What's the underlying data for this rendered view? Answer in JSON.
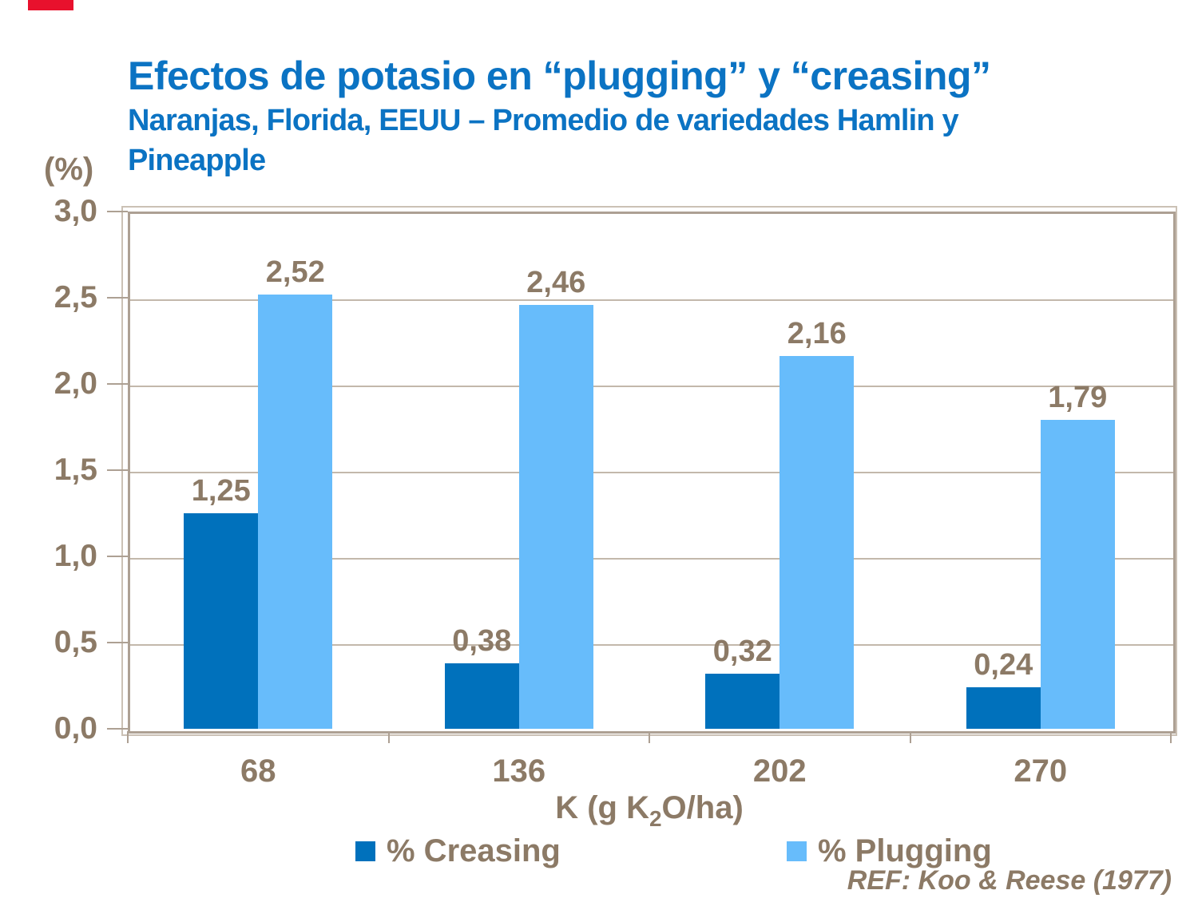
{
  "slide": {
    "title": "Efectos de potasio en “plugging” y “creasing”",
    "subtitle_line1": "Naranjas, Florida, EEUU – Promedio de variedades Hamlin y",
    "subtitle_line2": "Pineapple",
    "reference": "REF: Koo & Reese (1977)",
    "accent_color": "#e8112d",
    "title_color": "#0b73c3"
  },
  "chart_data": {
    "type": "bar",
    "title": "Efectos de potasio en “plugging” y “creasing”",
    "subtitle": "Naranjas, Florida, EEUU – Promedio de variedades Hamlin y Pineapple",
    "unit_label": "(%)",
    "xlabel": "K (g K2O/ha)",
    "xlabel_parts": {
      "pre": "K (g K",
      "sub": "2",
      "post": "O/ha)"
    },
    "categories": [
      "68",
      "136",
      "202",
      "270"
    ],
    "series": [
      {
        "name": "% Creasing",
        "color": "#0071bc",
        "values": [
          1.25,
          0.38,
          0.32,
          0.24
        ],
        "labels": [
          "1,25",
          "0,38",
          "0,32",
          "0,24"
        ]
      },
      {
        "name": "% Plugging",
        "color": "#67bcfb",
        "values": [
          2.52,
          2.46,
          2.16,
          1.79
        ],
        "labels": [
          "2,52",
          "2,46",
          "2,16",
          "1,79"
        ]
      }
    ],
    "ylim": [
      0,
      3.0
    ],
    "y_tick_labels": [
      "3,0",
      "2,5",
      "2,0",
      "1,5",
      "1,0",
      "0,5",
      "0,0"
    ],
    "grid": true,
    "legend_position": "bottom",
    "text_color": "#8c7a66",
    "frame_color": "#ada093",
    "gridline_color": "#c3b8ab",
    "reference": "REF: Koo & Reese (1977)"
  }
}
